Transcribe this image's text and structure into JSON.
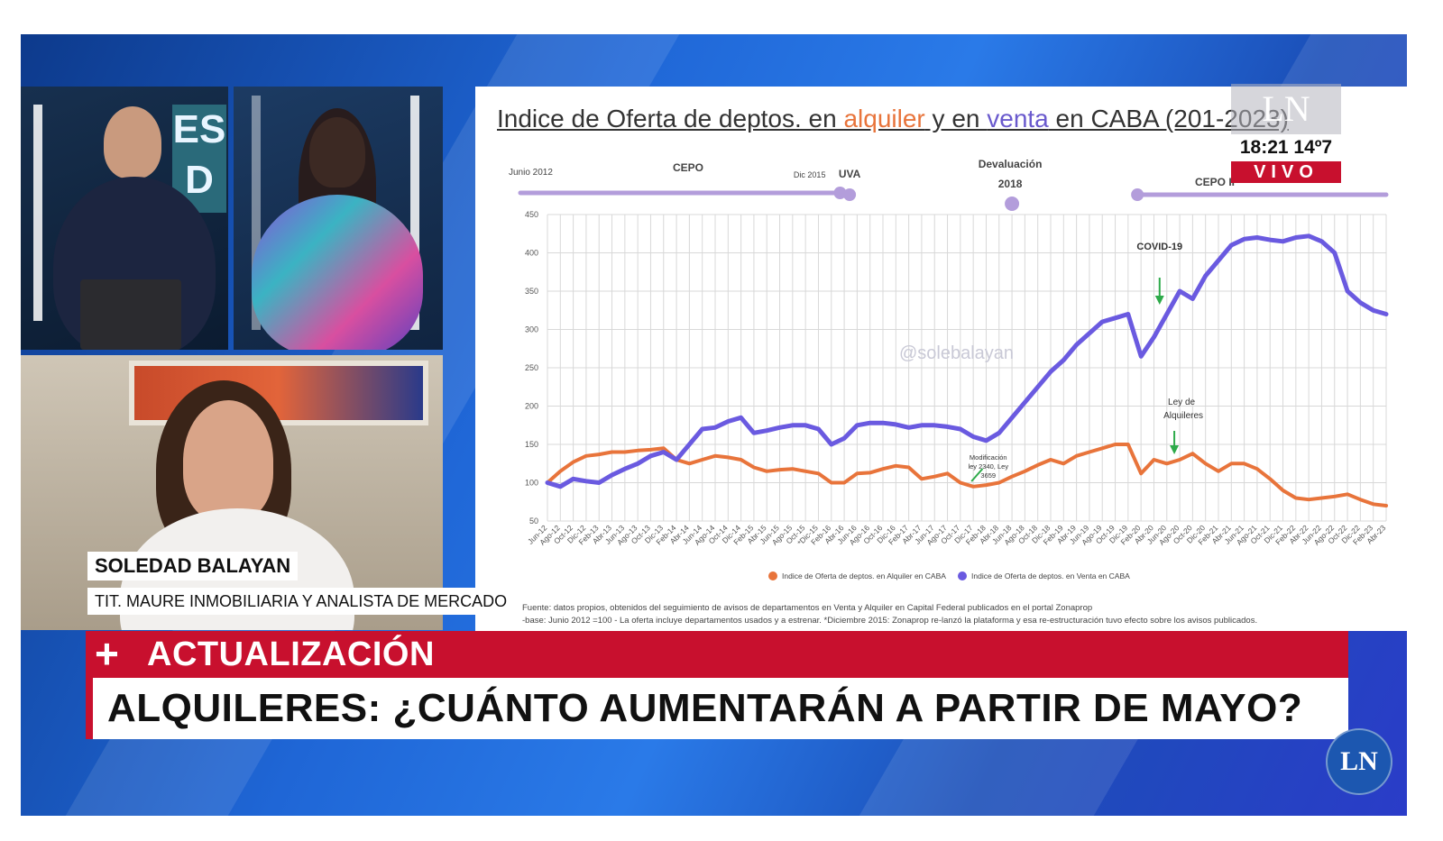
{
  "chart_data": {
    "type": "line",
    "title_parts": [
      "Indice de Oferta de deptos. en ",
      "alquiler",
      " y en ",
      "venta",
      " en CABA  (201",
      "-2023)"
    ],
    "yticks": [
      50,
      100,
      150,
      200,
      250,
      300,
      350,
      400,
      450
    ],
    "ylim": [
      50,
      450
    ],
    "xlabels": [
      "Jun-12",
      "Ago-12",
      "Oct-12",
      "Dic-12",
      "Feb-13",
      "Abr-13",
      "Jun-13",
      "Ago-13",
      "Oct-13",
      "Dic-13",
      "Feb-14",
      "Abr-14",
      "Jun-14",
      "Ago-14",
      "Oct-14",
      "Dic-14",
      "Feb-15",
      "Abr-15",
      "Jun-15",
      "Ago-15",
      "Oct-15",
      "*Dic-15",
      "Feb-16",
      "Abr-16",
      "Jun-16",
      "Ago-16",
      "Oct-16",
      "Dic-16",
      "Feb-17",
      "Abr-17",
      "Jun-17",
      "Ago-17",
      "Oct-17",
      "Dic-17",
      "Feb-18",
      "Abr-18",
      "Jun-18",
      "Ago-18",
      "Oct-18",
      "Dic-18",
      "Feb-19",
      "Abr-19",
      "Jun-19",
      "Ago-19",
      "Oct-19",
      "Dic-19",
      "Feb-20",
      "Abr-20",
      "Jun-20",
      "Ago-20",
      "Oct-20",
      "Dic-20",
      "Feb-21",
      "Abr-21",
      "Jun-21",
      "Ago-21",
      "Oct-21",
      "Dic-21",
      "Feb-22",
      "Abr-22",
      "Jun-22",
      "Ago-22",
      "Oct-22",
      "Dic-22",
      "Feb-23",
      "Abr-23"
    ],
    "series": [
      {
        "name": "Indice de Oferta de deptos. en Alquiler en CABA",
        "color": "#e8743b",
        "values": [
          100,
          115,
          127,
          135,
          137,
          140,
          140,
          142,
          143,
          145,
          130,
          125,
          130,
          135,
          133,
          130,
          120,
          115,
          117,
          118,
          115,
          112,
          100,
          100,
          112,
          113,
          118,
          122,
          120,
          105,
          108,
          112,
          100,
          95,
          97,
          100,
          108,
          115,
          123,
          130,
          125,
          135,
          140,
          145,
          150,
          150,
          112,
          130,
          125,
          130,
          138,
          125,
          115,
          125,
          125,
          118,
          105,
          90,
          80,
          78,
          80,
          82,
          85,
          78,
          72,
          70
        ]
      },
      {
        "name": "Indice de Oferta de deptos. en Venta en CABA",
        "color": "#6a5ae0",
        "values": [
          100,
          95,
          105,
          102,
          100,
          110,
          118,
          125,
          135,
          140,
          130,
          150,
          170,
          172,
          180,
          185,
          165,
          168,
          172,
          175,
          175,
          170,
          150,
          158,
          175,
          178,
          178,
          176,
          172,
          175,
          175,
          173,
          170,
          160,
          155,
          165,
          185,
          205,
          225,
          245,
          260,
          280,
          295,
          310,
          315,
          320,
          265,
          290,
          320,
          350,
          340,
          370,
          390,
          410,
          418,
          420,
          417,
          415,
          420,
          422,
          415,
          400,
          350,
          335,
          325,
          320
        ]
      }
    ],
    "legend_placement": "bottom-center",
    "grid": true,
    "events": [
      {
        "label": "CEPO",
        "type": "range"
      },
      {
        "label": "UVA",
        "type": "point"
      },
      {
        "label": "Devaluación",
        "label2": "2018",
        "type": "point"
      },
      {
        "label": "CEPO II",
        "type": "range"
      }
    ],
    "event_dates": [
      "Junio 2012",
      "Dic 2015"
    ],
    "annotations": {
      "covid": "COVID-19",
      "ley1": "Ley de",
      "ley2": "Alquileres",
      "mod1": "Modificación",
      "mod2": "ley 2340, Ley",
      "mod3": "3659"
    },
    "watermark": "@solebalayan",
    "source_line1": "Fuente: datos propios, obtenidos del seguimiento de avisos de departamentos en Venta y Alquiler en Capital Federal publicados en el portal Zonaprop",
    "source_line2": "-base:  Junio 2012  =100 - La oferta incluye departamentos usados y a estrenar. *Diciembre 2015: Zonaprop re-lanzó la plataforma y esa re-estructuración tuvo efecto sobre los avisos publicados."
  },
  "overlay": {
    "logo": "LN",
    "clock": "18:21  14º7",
    "live": "VIVO",
    "section_plus": "+",
    "section": "ACTUALIZACIÓN",
    "headline": "ALQUILERES: ¿CUÁNTO AUMENTARÁN A PARTIR DE MAYO?",
    "guest_name": "SOLEDAD BALAYAN",
    "guest_role": "TIT. MAURE INMOBILIARIA Y ANALISTA DE MERCADO",
    "set_text": "ES D"
  },
  "colors": {
    "red": "#c8102e",
    "blue": "#1f66d6",
    "rent": "#e8743b",
    "sale": "#6a5ae0",
    "event": "#b39ddb"
  }
}
